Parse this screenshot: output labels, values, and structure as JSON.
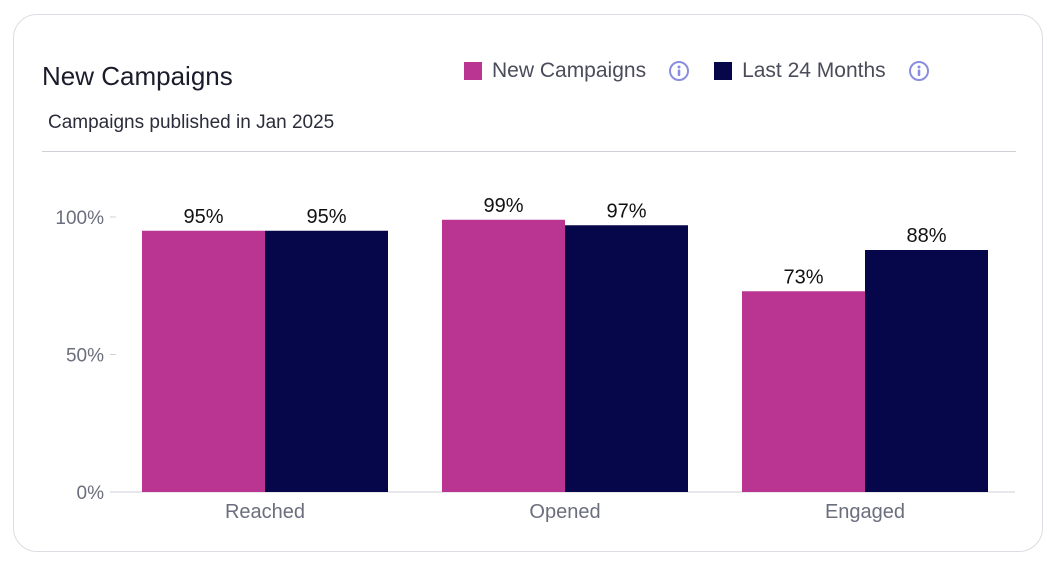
{
  "card": {
    "title": "New Campaigns",
    "subtitle": "Campaigns published in Jan 2025"
  },
  "legend": [
    {
      "label": "New Campaigns",
      "color": "#b93591",
      "icon": "info-icon"
    },
    {
      "label": "Last 24 Months",
      "color": "#06064a",
      "icon": "info-icon"
    }
  ],
  "chart_data": {
    "type": "bar",
    "title": "New Campaigns",
    "subtitle": "Campaigns published in Jan 2025",
    "categories": [
      "Reached",
      "Opened",
      "Engaged"
    ],
    "series": [
      {
        "name": "New Campaigns",
        "values": [
          95,
          99,
          73
        ],
        "labels": [
          "95%",
          "99%",
          "73%"
        ],
        "color": "#b93591"
      },
      {
        "name": "Last 24 Months",
        "values": [
          95,
          97,
          88
        ],
        "labels": [
          "95%",
          "97%",
          "88%"
        ],
        "color": "#06064a"
      }
    ],
    "yticks": [
      0,
      50,
      100
    ],
    "ytick_labels": [
      "0%",
      "50%",
      "100%"
    ],
    "ylim": [
      0,
      100
    ],
    "xlabel": "",
    "ylabel": "",
    "grid": false,
    "legend_position": "top-right"
  }
}
